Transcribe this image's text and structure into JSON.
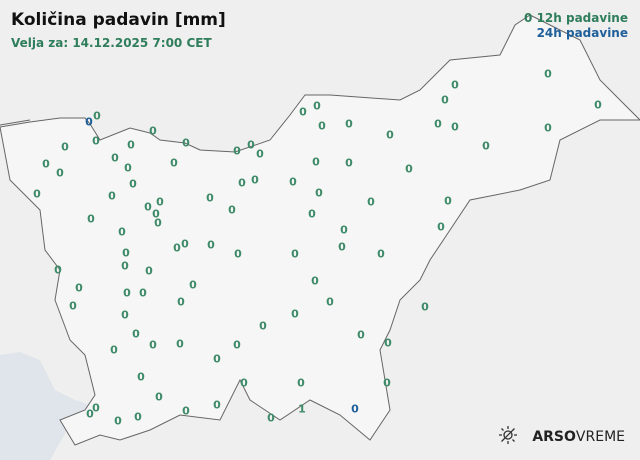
{
  "header": {
    "title": "Količina padavin [mm]",
    "valid_for": "Velja za: 14.12.2025 7:00 CET"
  },
  "legend": {
    "item_12h": {
      "symbol": "0",
      "label": "12h padavine",
      "color": "#2e7d5b"
    },
    "item_24h": {
      "label": "24h padavine",
      "color": "#1f5f9a"
    }
  },
  "stations": [
    {
      "v": "0",
      "t": "24h"
    },
    {
      "v": "0",
      "t": "12h"
    },
    {
      "v": "0",
      "t": "12h"
    },
    {
      "v": "0",
      "t": "12h"
    },
    {
      "v": "0",
      "t": "12h"
    },
    {
      "v": "0",
      "t": "12h"
    },
    {
      "v": "0",
      "t": "12h"
    },
    {
      "v": "0",
      "t": "12h"
    },
    {
      "v": "0",
      "t": "12h"
    },
    {
      "v": "0",
      "t": "12h"
    },
    {
      "v": "0",
      "t": "12h"
    },
    {
      "v": "0",
      "t": "12h"
    },
    {
      "v": "0",
      "t": "12h"
    },
    {
      "v": "0",
      "t": "12h"
    },
    {
      "v": "0",
      "t": "12h"
    },
    {
      "v": "0",
      "t": "12h"
    },
    {
      "v": "0",
      "t": "12h"
    },
    {
      "v": "0",
      "t": "12h"
    },
    {
      "v": "0",
      "t": "12h"
    },
    {
      "v": "0",
      "t": "12h"
    },
    {
      "v": "0",
      "t": "12h"
    },
    {
      "v": "0",
      "t": "12h"
    },
    {
      "v": "0",
      "t": "12h"
    },
    {
      "v": "0",
      "t": "12h"
    },
    {
      "v": "0",
      "t": "12h"
    },
    {
      "v": "0",
      "t": "12h"
    },
    {
      "v": "0",
      "t": "12h"
    },
    {
      "v": "0",
      "t": "12h"
    },
    {
      "v": "0",
      "t": "12h"
    },
    {
      "v": "0",
      "t": "12h"
    },
    {
      "v": "0",
      "t": "12h"
    },
    {
      "v": "0",
      "t": "12h"
    },
    {
      "v": "0",
      "t": "12h"
    },
    {
      "v": "0",
      "t": "12h"
    },
    {
      "v": "0",
      "t": "12h"
    },
    {
      "v": "0",
      "t": "12h"
    },
    {
      "v": "0",
      "t": "12h"
    },
    {
      "v": "0",
      "t": "12h"
    },
    {
      "v": "0",
      "t": "12h"
    },
    {
      "v": "0",
      "t": "12h"
    },
    {
      "v": "0",
      "t": "12h"
    },
    {
      "v": "0",
      "t": "12h"
    },
    {
      "v": "0",
      "t": "12h"
    },
    {
      "v": "0",
      "t": "12h"
    },
    {
      "v": "0",
      "t": "12h"
    },
    {
      "v": "0",
      "t": "12h"
    },
    {
      "v": "0",
      "t": "12h"
    },
    {
      "v": "0",
      "t": "12h"
    },
    {
      "v": "0",
      "t": "12h"
    },
    {
      "v": "0",
      "t": "12h"
    },
    {
      "v": "0",
      "t": "12h"
    },
    {
      "v": "0",
      "t": "12h"
    },
    {
      "v": "0",
      "t": "12h"
    },
    {
      "v": "0",
      "t": "12h"
    },
    {
      "v": "0",
      "t": "12h"
    },
    {
      "v": "0",
      "t": "12h"
    },
    {
      "v": "0",
      "t": "12h"
    },
    {
      "v": "0",
      "t": "12h"
    },
    {
      "v": "0",
      "t": "12h"
    },
    {
      "v": "0",
      "t": "12h"
    },
    {
      "v": "0",
      "t": "12h"
    },
    {
      "v": "0",
      "t": "12h"
    },
    {
      "v": "0",
      "t": "12h"
    },
    {
      "v": "0",
      "t": "12h"
    },
    {
      "v": "0",
      "t": "12h"
    },
    {
      "v": "0",
      "t": "12h"
    },
    {
      "v": "0",
      "t": "12h"
    },
    {
      "v": "0",
      "t": "12h"
    },
    {
      "v": "0",
      "t": "12h"
    },
    {
      "v": "0",
      "t": "12h"
    },
    {
      "v": "0",
      "t": "12h"
    },
    {
      "v": "0",
      "t": "12h"
    },
    {
      "v": "0",
      "t": "12h"
    },
    {
      "v": "0",
      "t": "12h"
    },
    {
      "v": "0",
      "t": "12h"
    },
    {
      "v": "0",
      "t": "12h"
    },
    {
      "v": "0",
      "t": "12h"
    },
    {
      "v": "0",
      "t": "12h"
    },
    {
      "v": "0",
      "t": "12h"
    },
    {
      "v": "0",
      "t": "12h"
    },
    {
      "v": "0",
      "t": "12h"
    },
    {
      "v": "0",
      "t": "12h"
    },
    {
      "v": "0",
      "t": "12h"
    },
    {
      "v": "0",
      "t": "12h"
    },
    {
      "v": "0",
      "t": "12h"
    },
    {
      "v": "0",
      "t": "12h"
    },
    {
      "v": "0",
      "t": "12h"
    },
    {
      "v": "0",
      "t": "12h"
    },
    {
      "v": "0",
      "t": "12h"
    },
    {
      "v": "0",
      "t": "12h"
    },
    {
      "v": "0",
      "t": "12h"
    },
    {
      "v": "0",
      "t": "12h"
    },
    {
      "v": "0",
      "t": "12h"
    },
    {
      "v": "0",
      "t": "12h"
    },
    {
      "v": "1",
      "t": "12h"
    },
    {
      "v": "0",
      "t": "24h"
    }
  ],
  "branding": {
    "logo_bold": "ARSO",
    "logo_light": "VREME",
    "theme_toggle_icon": "sun-icon"
  }
}
